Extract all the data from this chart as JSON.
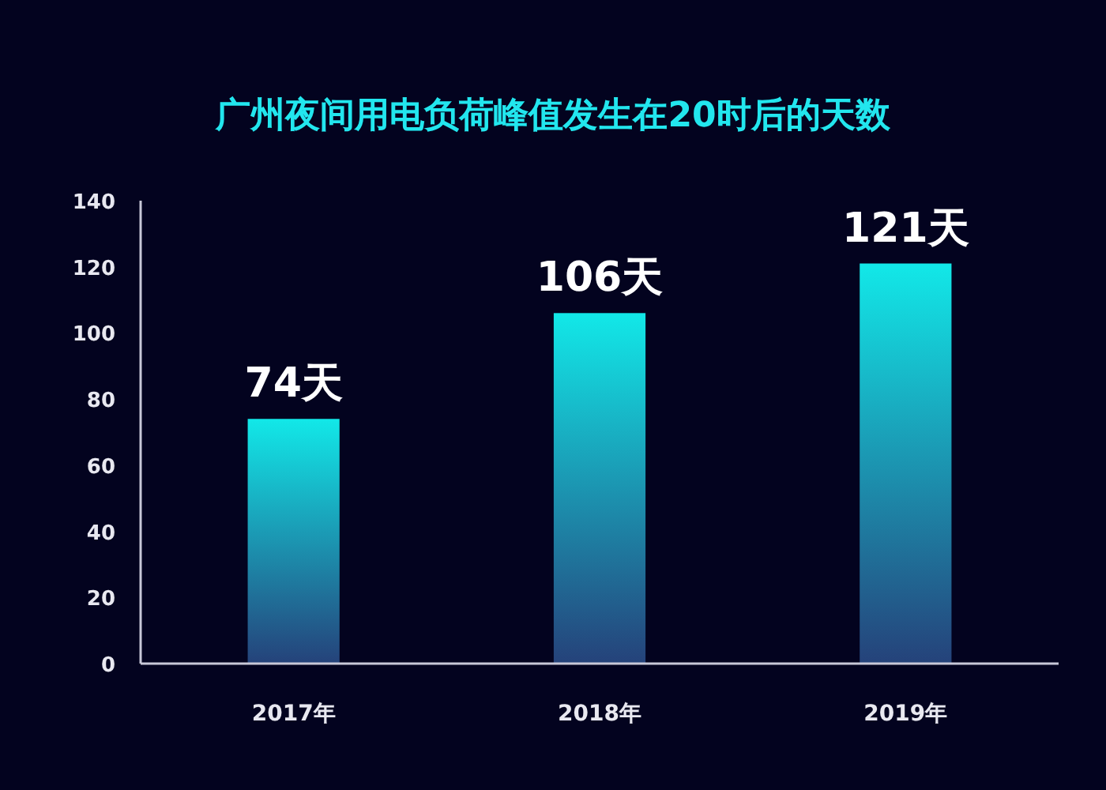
{
  "chart_data": {
    "type": "bar",
    "title": "广州夜间用电负荷峰值发生在20时后的天数",
    "categories": [
      "2017年",
      "2018年",
      "2019年"
    ],
    "values": [
      74,
      106,
      121
    ],
    "value_labels": [
      "74天",
      "106天",
      "121天"
    ],
    "color": "#12e8e8",
    "ylim": [
      0,
      140
    ],
    "yticks": [
      0,
      20,
      40,
      60,
      80,
      100,
      120,
      140
    ],
    "grid": false
  }
}
